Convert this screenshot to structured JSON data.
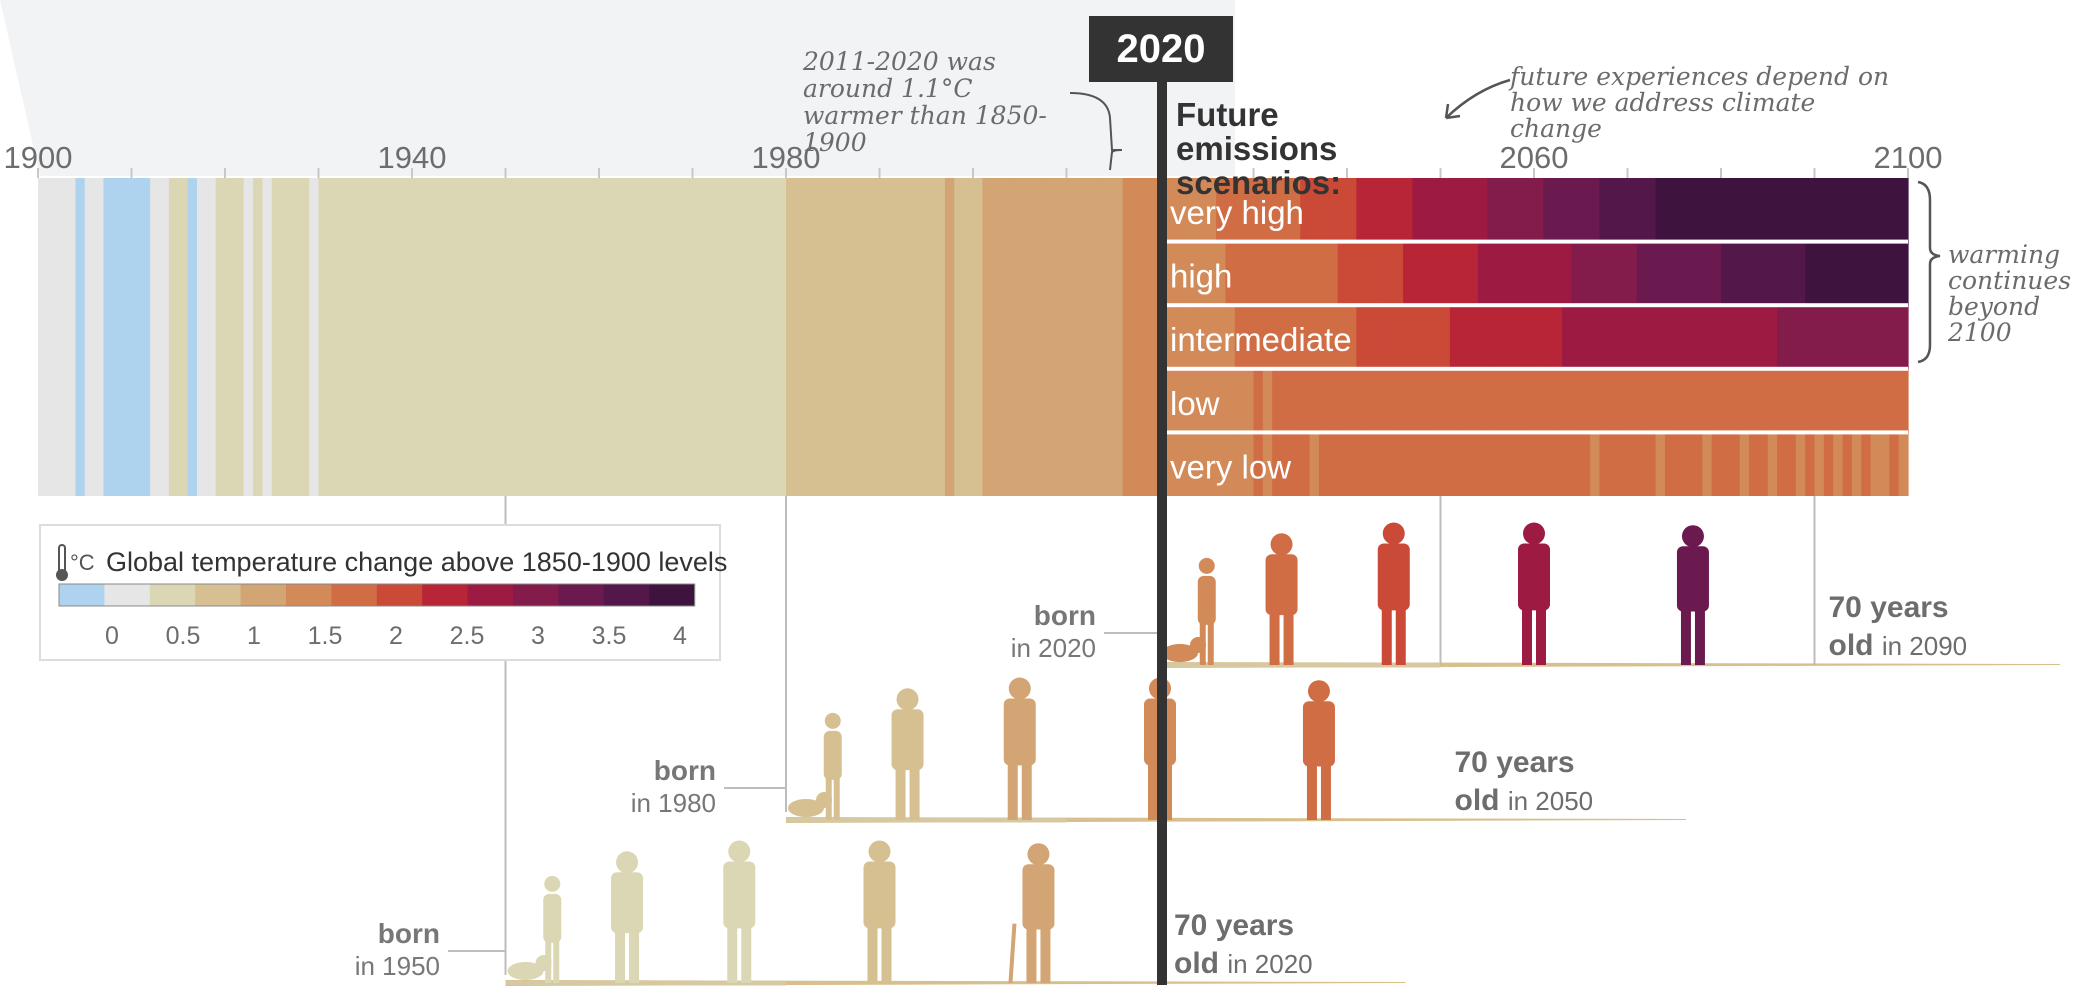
{
  "chart_data": {
    "type": "heatmap",
    "title": "2020",
    "x_axis": {
      "range": [
        1900,
        2100
      ],
      "tick_labels": [
        "1900",
        "1940",
        "1980",
        "2060",
        "2100"
      ]
    },
    "highlight_year": "2020",
    "historical_note": "2011-2020 was around 1.1°C warmer than 1850-1900",
    "historical_stripes": {
      "start_year": 1900,
      "values": [
        0.1,
        0.1,
        0.1,
        0.1,
        -0.2,
        0.1,
        0.1,
        -0.2,
        -0.2,
        -0.2,
        -0.2,
        -0.2,
        0.1,
        0.1,
        0.2,
        0.4,
        -0.2,
        0.1,
        0.1,
        0.2,
        0.2,
        0.2,
        0.1,
        0.2,
        0.1,
        0.2,
        0.3,
        0.2,
        0.2,
        0.1,
        0.3,
        0.3,
        0.3,
        0.2,
        0.3,
        0.3,
        0.3,
        0.3,
        0.4,
        0.3,
        0.3,
        0.3,
        0.3,
        0.3,
        0.4,
        0.3,
        0.2,
        0.3,
        0.3,
        0.3,
        0.2,
        0.3,
        0.3,
        0.4,
        0.2,
        0.2,
        0.3,
        0.3,
        0.4,
        0.4,
        0.3,
        0.4,
        0.4,
        0.3,
        0.2,
        0.3,
        0.3,
        0.4,
        0.3,
        0.3,
        0.4,
        0.3,
        0.4,
        0.3,
        0.3,
        0.3,
        0.2,
        0.4,
        0.3,
        0.4,
        0.6,
        0.5,
        0.5,
        0.6,
        0.5,
        0.5,
        0.5,
        0.7,
        0.6,
        0.6,
        0.7,
        0.7,
        0.5,
        0.6,
        0.7,
        0.7,
        0.6,
        0.9,
        0.7,
        0.7,
        0.8,
        0.9,
        0.9,
        0.9,
        0.9,
        0.9,
        0.9,
        0.9,
        0.9,
        0.9,
        1.0,
        1.0,
        1.0,
        1.0,
        1.0,
        1.1,
        1.2,
        1.3,
        1.2,
        1.2,
        1.2
      ]
    },
    "scenarios": [
      {
        "name": "very high",
        "values": [
          1.2,
          1.3,
          1.3,
          1.4,
          1.4,
          1.4,
          1.5,
          1.6,
          1.6,
          1.6,
          1.6,
          1.7,
          1.8,
          1.8,
          1.8,
          1.9,
          1.9,
          2.0,
          2.0,
          2.1,
          2.1,
          2.2,
          2.2,
          2.3,
          2.3,
          2.4,
          2.4,
          2.5,
          2.5,
          2.6,
          2.6,
          2.7,
          2.7,
          2.8,
          2.8,
          2.9,
          2.9,
          3.0,
          3.0,
          3.1,
          3.1,
          3.2,
          3.2,
          3.3,
          3.3,
          3.4,
          3.4,
          3.5,
          3.5,
          3.6,
          3.6,
          3.7,
          3.7,
          3.8,
          3.8,
          3.9,
          3.9,
          4.0,
          4.0,
          4.1,
          4.1,
          4.1,
          4.1,
          4.1,
          4.1,
          4.1,
          4.1,
          4.1,
          4.1,
          4.1,
          4.1,
          4.1,
          4.1,
          4.1,
          4.1,
          4.1,
          4.1,
          4.1,
          4.1,
          4.1
        ]
      },
      {
        "name": "high",
        "values": [
          1.2,
          1.2,
          1.3,
          1.3,
          1.4,
          1.4,
          1.4,
          1.5,
          1.5,
          1.5,
          1.6,
          1.6,
          1.6,
          1.7,
          1.7,
          1.7,
          1.8,
          1.8,
          1.8,
          1.9,
          1.9,
          2.0,
          2.0,
          2.0,
          2.1,
          2.1,
          2.2,
          2.2,
          2.2,
          2.3,
          2.3,
          2.4,
          2.4,
          2.4,
          2.5,
          2.5,
          2.6,
          2.6,
          2.6,
          2.7,
          2.7,
          2.8,
          2.8,
          2.8,
          2.9,
          2.9,
          3.0,
          3.0,
          3.0,
          3.1,
          3.1,
          3.2,
          3.2,
          3.2,
          3.3,
          3.3,
          3.3,
          3.4,
          3.4,
          3.4,
          3.5,
          3.5,
          3.5,
          3.6,
          3.6,
          3.6,
          3.7,
          3.7,
          3.7,
          3.8,
          3.8,
          3.8,
          3.9,
          3.9,
          3.9,
          3.9,
          4.0,
          4.0,
          4.0,
          4.0
        ]
      },
      {
        "name": "intermediate",
        "values": [
          1.2,
          1.2,
          1.2,
          1.3,
          1.3,
          1.4,
          1.4,
          1.4,
          1.5,
          1.5,
          1.5,
          1.5,
          1.6,
          1.6,
          1.6,
          1.7,
          1.7,
          1.7,
          1.8,
          1.8,
          1.8,
          1.9,
          1.9,
          1.9,
          2.0,
          2.0,
          2.0,
          2.0,
          2.1,
          2.1,
          2.1,
          2.2,
          2.2,
          2.2,
          2.2,
          2.3,
          2.3,
          2.3,
          2.3,
          2.4,
          2.4,
          2.4,
          2.4,
          2.5,
          2.5,
          2.5,
          2.5,
          2.5,
          2.6,
          2.6,
          2.6,
          2.6,
          2.6,
          2.7,
          2.7,
          2.7,
          2.7,
          2.7,
          2.7,
          2.8,
          2.8,
          2.8,
          2.8,
          2.8,
          2.8,
          2.8,
          2.9,
          2.9,
          2.9,
          2.9,
          2.9,
          2.9,
          2.9,
          2.9,
          2.9,
          3.0,
          3.0,
          3.0,
          3.0,
          3.0
        ]
      },
      {
        "name": "low",
        "values": [
          1.2,
          1.2,
          1.2,
          1.3,
          1.3,
          1.3,
          1.4,
          1.3,
          1.4,
          1.4,
          1.5,
          1.4,
          1.5,
          1.5,
          1.5,
          1.6,
          1.5,
          1.6,
          1.6,
          1.6,
          1.7,
          1.6,
          1.7,
          1.7,
          1.7,
          1.6,
          1.7,
          1.8,
          1.7,
          1.7,
          1.8,
          1.8,
          1.7,
          1.8,
          1.8,
          1.8,
          1.7,
          1.8,
          1.8,
          1.8,
          1.7,
          1.8,
          1.8,
          1.8,
          1.8,
          1.7,
          1.8,
          1.8,
          1.8,
          1.8,
          1.8,
          1.7,
          1.8,
          1.8,
          1.8,
          1.8,
          1.8,
          1.7,
          1.8,
          1.8,
          1.8,
          1.8,
          1.8,
          1.7,
          1.8,
          1.8,
          1.8,
          1.8,
          1.8,
          1.8,
          1.7,
          1.8,
          1.8,
          1.8,
          1.8,
          1.8,
          1.8,
          1.7,
          1.8,
          1.8
        ]
      },
      {
        "name": "very low",
        "values": [
          1.2,
          1.2,
          1.3,
          1.3,
          1.3,
          1.4,
          1.3,
          1.4,
          1.4,
          1.4,
          1.5,
          1.4,
          1.5,
          1.5,
          1.5,
          1.5,
          1.4,
          1.5,
          1.5,
          1.6,
          1.5,
          1.5,
          1.6,
          1.5,
          1.6,
          1.5,
          1.5,
          1.6,
          1.5,
          1.5,
          1.6,
          1.5,
          1.5,
          1.6,
          1.5,
          1.5,
          1.5,
          1.6,
          1.5,
          1.5,
          1.5,
          1.5,
          1.5,
          1.6,
          1.5,
          1.5,
          1.4,
          1.5,
          1.5,
          1.5,
          1.5,
          1.5,
          1.5,
          1.4,
          1.5,
          1.5,
          1.5,
          1.5,
          1.4,
          1.5,
          1.5,
          1.5,
          1.4,
          1.5,
          1.5,
          1.4,
          1.5,
          1.5,
          1.4,
          1.5,
          1.4,
          1.5,
          1.4,
          1.5,
          1.4,
          1.5,
          1.4,
          1.4,
          1.5,
          1.4
        ]
      }
    ],
    "scenario_title": "Future emissions scenarios:",
    "future_note": "future experiences depend on how we address climate change",
    "beyond_note": "warming continues beyond 2100",
    "legend": {
      "icon": "°C",
      "title": "Global temperature change above 1850-1900 levels",
      "tick_labels": [
        "0",
        "0.5",
        "1",
        "1.5",
        "2",
        "2.5",
        "3",
        "3.5",
        "4"
      ],
      "colors": [
        "#aed3ef",
        "#e6e6e6",
        "#dbd7b4",
        "#d6c092",
        "#d3a474",
        "#d38a59",
        "#d06d45",
        "#ca4937",
        "#b72536",
        "#9d1b43",
        "#831b4b",
        "#6a1a4f",
        "#531849",
        "#3e143f"
      ]
    },
    "generations": [
      {
        "born_word": "born",
        "born_year": "in 1950",
        "age_num": "70 years",
        "age_word": "old",
        "age_year": "in 2020",
        "birth_year": 1950,
        "figure_years": [
          1950,
          1955,
          1963,
          1975,
          1990,
          2007
        ]
      },
      {
        "born_word": "born",
        "born_year": "in 1980",
        "age_num": "70 years",
        "age_word": "old",
        "age_year": "in 2050",
        "birth_year": 1980,
        "figure_years": [
          1980,
          1985,
          1993,
          2005,
          2020,
          2037
        ]
      },
      {
        "born_word": "born",
        "born_year": "in 2020",
        "age_num": "70 years",
        "age_word": "old",
        "age_year": "in 2090",
        "birth_year": 2020,
        "figure_years": [
          2020,
          2025,
          2033,
          2045,
          2060,
          2077
        ]
      }
    ]
  }
}
